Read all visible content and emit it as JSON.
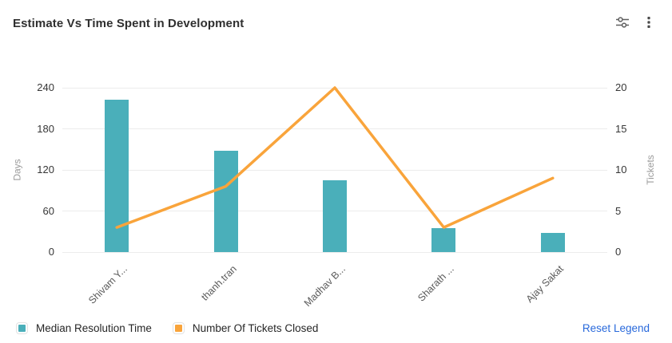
{
  "header": {
    "title": "Estimate Vs Time Spent in Development"
  },
  "toolbar": {
    "filter_icon": "sliders-icon",
    "menu_icon": "kebab-menu-icon",
    "icon_color": "#5f5f5f"
  },
  "chart_data": {
    "type": "bar",
    "subtype": "combo-bar-line",
    "title": "Estimate Vs Time Spent in Development",
    "categories": [
      "Shivam Y...",
      "thanh.tran",
      "Madhav B...",
      "Sharath ...",
      "Ajay Sakat"
    ],
    "series": [
      {
        "name": "Median Resolution Time",
        "type": "bar",
        "axis": "left",
        "color": "#4AAFBA",
        "values": [
          223,
          148,
          105,
          35,
          28
        ]
      },
      {
        "name": "Number Of Tickets Closed",
        "type": "line",
        "axis": "right",
        "color": "#F9A43B",
        "values": [
          3,
          8,
          20,
          3,
          9
        ]
      }
    ],
    "left_axis": {
      "label": "Days",
      "ticks": [
        0,
        60,
        120,
        180,
        240
      ],
      "max": 240
    },
    "right_axis": {
      "label": "Tickets",
      "ticks": [
        0,
        5,
        10,
        15,
        20
      ],
      "max": 20
    },
    "grid": true,
    "legend_position": "bottom"
  },
  "legend": {
    "reset_label": "Reset Legend",
    "reset_color": "#2969DB"
  }
}
